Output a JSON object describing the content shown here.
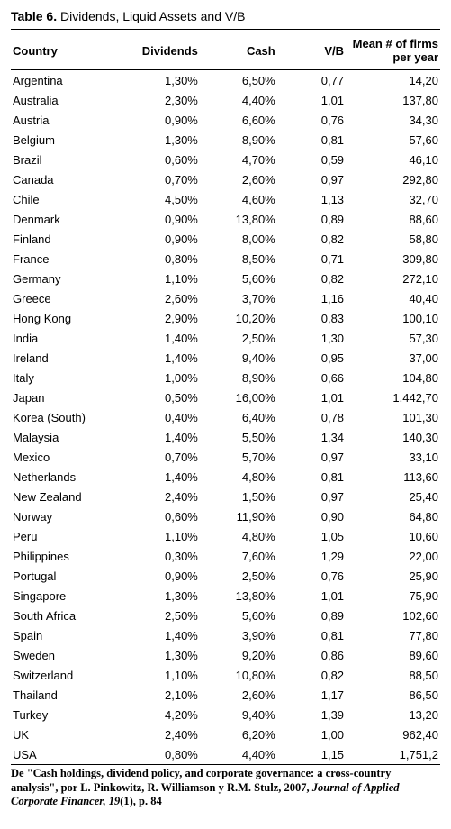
{
  "title_prefix": "Table 6.",
  "title_rest": " Dividends, Liquid Assets and V/B",
  "columns": [
    "Country",
    "Dividends",
    "Cash",
    "V/B",
    "Mean # of firms per year"
  ],
  "rows": [
    [
      "Argentina",
      "1,30%",
      "6,50%",
      "0,77",
      "14,20"
    ],
    [
      "Australia",
      "2,30%",
      "4,40%",
      "1,01",
      "137,80"
    ],
    [
      "Austria",
      "0,90%",
      "6,60%",
      "0,76",
      "34,30"
    ],
    [
      "Belgium",
      "1,30%",
      "8,90%",
      "0,81",
      "57,60"
    ],
    [
      "Brazil",
      "0,60%",
      "4,70%",
      "0,59",
      "46,10"
    ],
    [
      "Canada",
      "0,70%",
      "2,60%",
      "0,97",
      "292,80"
    ],
    [
      "Chile",
      "4,50%",
      "4,60%",
      "1,13",
      "32,70"
    ],
    [
      "Denmark",
      "0,90%",
      "13,80%",
      "0,89",
      "88,60"
    ],
    [
      "Finland",
      "0,90%",
      "8,00%",
      "0,82",
      "58,80"
    ],
    [
      "France",
      "0,80%",
      "8,50%",
      "0,71",
      "309,80"
    ],
    [
      "Germany",
      "1,10%",
      "5,60%",
      "0,82",
      "272,10"
    ],
    [
      "Greece",
      "2,60%",
      "3,70%",
      "1,16",
      "40,40"
    ],
    [
      "Hong Kong",
      "2,90%",
      "10,20%",
      "0,83",
      "100,10"
    ],
    [
      "India",
      "1,40%",
      "2,50%",
      "1,30",
      "57,30"
    ],
    [
      "Ireland",
      "1,40%",
      "9,40%",
      "0,95",
      "37,00"
    ],
    [
      "Italy",
      "1,00%",
      "8,90%",
      "0,66",
      "104,80"
    ],
    [
      "Japan",
      "0,50%",
      "16,00%",
      "1,01",
      "1.442,70"
    ],
    [
      "Korea (South)",
      "0,40%",
      "6,40%",
      "0,78",
      "101,30"
    ],
    [
      "Malaysia",
      "1,40%",
      "5,50%",
      "1,34",
      "140,30"
    ],
    [
      "Mexico",
      "0,70%",
      "5,70%",
      "0,97",
      "33,10"
    ],
    [
      "Netherlands",
      "1,40%",
      "4,80%",
      "0,81",
      "113,60"
    ],
    [
      "New Zealand",
      "2,40%",
      "1,50%",
      "0,97",
      "25,40"
    ],
    [
      "Norway",
      "0,60%",
      "11,90%",
      "0,90",
      "64,80"
    ],
    [
      "Peru",
      "1,10%",
      "4,80%",
      "1,05",
      "10,60"
    ],
    [
      "Philippines",
      "0,30%",
      "7,60%",
      "1,29",
      "22,00"
    ],
    [
      "Portugal",
      "0,90%",
      "2,50%",
      "0,76",
      "25,90"
    ],
    [
      "Singapore",
      "1,30%",
      "13,80%",
      "1,01",
      "75,90"
    ],
    [
      "South Africa",
      "2,50%",
      "5,60%",
      "0,89",
      "102,60"
    ],
    [
      "Spain",
      "1,40%",
      "3,90%",
      "0,81",
      "77,80"
    ],
    [
      "Sweden",
      "1,30%",
      "9,20%",
      "0,86",
      "89,60"
    ],
    [
      "Switzerland",
      "1,10%",
      "10,80%",
      "0,82",
      "88,50"
    ],
    [
      "Thailand",
      "2,10%",
      "2,60%",
      "1,17",
      "86,50"
    ],
    [
      "Turkey",
      "4,20%",
      "9,40%",
      "1,39",
      "13,20"
    ],
    [
      "UK",
      "2,40%",
      "6,20%",
      "1,00",
      "962,40"
    ],
    [
      "USA",
      "0,80%",
      "4,40%",
      "1,15",
      "1,751,2"
    ]
  ],
  "footnote_plain1": "De \"Cash holdings, dividend policy, and corporate governance: a cross-country analysis\", por L. Pinkowitz, R. Williamson y R.M. Stulz, 2007, ",
  "footnote_ital1": "Journal of Applied Corporate Financer, 19",
  "footnote_plain2": "(1), p. 84"
}
